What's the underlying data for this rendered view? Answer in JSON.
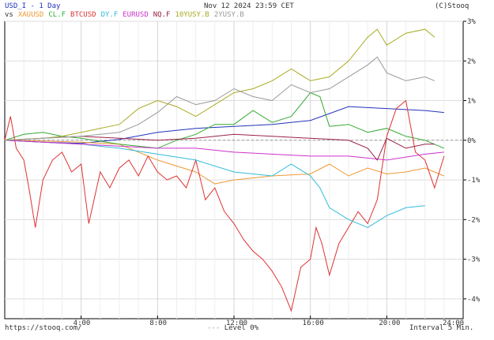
{
  "header": {
    "title": "USD_I - 1 Day",
    "datetime": "Nov 12 2024 23:59 CET",
    "copyright": "(C)Stooq",
    "vs_label": "vs"
  },
  "footer": {
    "url": "https://stooq.com/",
    "level": "Level 0%",
    "interval": "Interval 5 Min."
  },
  "chart_data": {
    "type": "line",
    "title": "USD_I - 1 Day",
    "x_ticks": [
      "4:00",
      "8:00",
      "12:00",
      "16:00",
      "20:00",
      "24:00"
    ],
    "y_ticks": [
      "3%",
      "2%",
      "1%",
      "0%",
      "-1%",
      "-2%",
      "-3%",
      "-4%"
    ],
    "y_tick_values": [
      3,
      2,
      1,
      0,
      -1,
      -2,
      -3,
      -4
    ],
    "xlim": [
      0,
      24
    ],
    "ylim": [
      -4.5,
      3
    ],
    "grid": true,
    "legend": "top-left",
    "reference_line": 0,
    "series": [
      {
        "name": "USD_I",
        "color": "#2233bb",
        "x": [
          0,
          2,
          4,
          6,
          8,
          10,
          12,
          14,
          16,
          18,
          20,
          22,
          23
        ],
        "y": [
          0,
          -0.05,
          -0.08,
          0.02,
          0.2,
          0.3,
          0.35,
          0.4,
          0.5,
          0.85,
          0.8,
          0.75,
          0.7
        ]
      },
      {
        "name": "XAUUSD",
        "color": "#ee9933",
        "x": [
          0,
          2,
          4,
          6,
          8,
          10,
          11,
          12,
          14,
          16,
          17,
          18,
          19,
          20,
          21,
          22,
          23
        ],
        "y": [
          0,
          -0.02,
          -0.05,
          -0.1,
          -0.5,
          -0.8,
          -1.1,
          -1.0,
          -0.9,
          -0.85,
          -0.6,
          -0.9,
          -0.7,
          -0.85,
          -0.8,
          -0.7,
          -0.9
        ]
      },
      {
        "name": "CL.F",
        "color": "#33aa33",
        "x": [
          0,
          1,
          2,
          3,
          4,
          6,
          8,
          9,
          10,
          11,
          12,
          13,
          14,
          15,
          16,
          16.5,
          17,
          18,
          19,
          20,
          21,
          22,
          23
        ],
        "y": [
          0,
          0.15,
          0.2,
          0.1,
          0.05,
          -0.1,
          -0.2,
          0,
          0.15,
          0.4,
          0.4,
          0.75,
          0.45,
          0.6,
          1.2,
          1.1,
          0.35,
          0.4,
          0.2,
          0.3,
          0.1,
          0,
          -0.2
        ]
      },
      {
        "name": "BTCUSD",
        "color": "#dd3333",
        "x": [
          0,
          0.3,
          0.6,
          1,
          1.3,
          1.6,
          2,
          2.5,
          3,
          3.5,
          4,
          4.4,
          5,
          5.5,
          6,
          6.5,
          7,
          7.5,
          8,
          8.5,
          9,
          9.5,
          10,
          10.5,
          11,
          11.5,
          12,
          12.5,
          13,
          13.5,
          14,
          14.5,
          15,
          15.5,
          16,
          16.3,
          16.6,
          17,
          17.5,
          18,
          18.5,
          19,
          19.5,
          20,
          20.5,
          21,
          21.5,
          22,
          22.5,
          23
        ],
        "y": [
          0,
          0.6,
          -0.2,
          -0.5,
          -1.3,
          -2.2,
          -1.0,
          -0.5,
          -0.3,
          -0.8,
          -0.6,
          -2.1,
          -0.8,
          -1.2,
          -0.7,
          -0.5,
          -0.9,
          -0.4,
          -0.8,
          -1.0,
          -0.9,
          -1.2,
          -0.5,
          -1.5,
          -1.2,
          -1.8,
          -2.1,
          -2.5,
          -2.8,
          -3.0,
          -3.3,
          -3.7,
          -4.3,
          -3.2,
          -3.0,
          -2.2,
          -2.6,
          -3.4,
          -2.6,
          -2.2,
          -1.8,
          -2.1,
          -1.5,
          0.1,
          0.8,
          1.0,
          -0.3,
          -0.5,
          -1.2,
          -0.4
        ]
      },
      {
        "name": "DY.F",
        "color": "#33bbdd",
        "x": [
          0,
          2,
          4,
          6,
          8,
          10,
          12,
          14,
          15,
          16,
          16.5,
          17,
          18,
          19,
          20,
          21,
          22
        ],
        "y": [
          0,
          -0.05,
          -0.1,
          -0.2,
          -0.35,
          -0.5,
          -0.8,
          -0.9,
          -0.6,
          -0.9,
          -1.2,
          -1.7,
          -2.0,
          -2.2,
          -1.9,
          -1.7,
          -1.65
        ]
      },
      {
        "name": "EURUSD",
        "color": "#cc33cc",
        "x": [
          0,
          2,
          4,
          6,
          8,
          10,
          12,
          14,
          16,
          18,
          20,
          22,
          23
        ],
        "y": [
          0,
          -0.05,
          -0.1,
          -0.15,
          -0.2,
          -0.2,
          -0.3,
          -0.35,
          -0.4,
          -0.4,
          -0.5,
          -0.35,
          -0.3
        ]
      },
      {
        "name": "NQ.F",
        "color": "#992244",
        "x": [
          0,
          2,
          4,
          6,
          8,
          10,
          12,
          14,
          16,
          18,
          19,
          19.5,
          20,
          21,
          22,
          22.5
        ],
        "y": [
          0,
          0.05,
          0.1,
          0.05,
          0,
          0.05,
          0.15,
          0.1,
          0.05,
          0,
          -0.2,
          -0.5,
          0.05,
          -0.2,
          -0.1,
          -0.1
        ]
      },
      {
        "name": "10YUSY.B",
        "color": "#aaaa22",
        "x": [
          0,
          2,
          3,
          4,
          5,
          6,
          7,
          8,
          9,
          10,
          11,
          12,
          13,
          14,
          15,
          16,
          17,
          18,
          19,
          19.5,
          20,
          21,
          22,
          22.5
        ],
        "y": [
          0,
          0.05,
          0.1,
          0.2,
          0.3,
          0.4,
          0.8,
          1.0,
          0.85,
          0.6,
          0.9,
          1.2,
          1.3,
          1.5,
          1.8,
          1.5,
          1.6,
          2.0,
          2.6,
          2.8,
          2.4,
          2.7,
          2.8,
          2.6
        ]
      },
      {
        "name": "2YUSY.B",
        "color": "#999999",
        "x": [
          0,
          2,
          4,
          6,
          7,
          8,
          9,
          10,
          11,
          12,
          13,
          14,
          15,
          16,
          17,
          18,
          19,
          19.5,
          20,
          21,
          22,
          22.5
        ],
        "y": [
          0,
          0.05,
          0.1,
          0.2,
          0.4,
          0.7,
          1.1,
          0.9,
          1.0,
          1.3,
          1.1,
          1.0,
          1.4,
          1.2,
          1.3,
          1.6,
          1.9,
          2.1,
          1.7,
          1.5,
          1.6,
          1.5
        ]
      }
    ]
  }
}
